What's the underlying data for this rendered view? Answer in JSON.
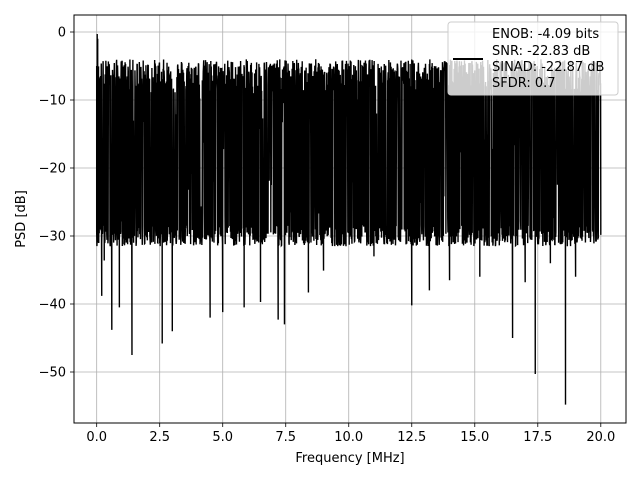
{
  "chart_data": {
    "type": "line",
    "title": "",
    "xlabel": "Frequency [MHz]",
    "ylabel": "PSD [dB]",
    "xlim": [
      -0.9,
      21.0
    ],
    "ylim": [
      -57.5,
      2.5
    ],
    "xticks": [
      0.0,
      2.5,
      5.0,
      7.5,
      10.0,
      12.5,
      15.0,
      17.5,
      20.0
    ],
    "xtick_labels": [
      "0.0",
      "2.5",
      "5.0",
      "7.5",
      "10.0",
      "12.5",
      "15.0",
      "17.5",
      "20.0"
    ],
    "yticks": [
      0,
      -10,
      -20,
      -30,
      -40,
      -50
    ],
    "ytick_labels": [
      "0",
      "−10",
      "−20",
      "−30",
      "−40",
      "−50"
    ],
    "grid": true,
    "legend": {
      "placement": "top-right",
      "lines": [
        "ENOB: -4.09 bits",
        "SNR: -22.83 dB",
        "SINAD: -22.87 dB",
        "SFDR: 0.7"
      ]
    },
    "series": [
      {
        "color": "#000000",
        "noise_floor_db": {
          "min": -28.5,
          "max": -9.0
        },
        "x": [
          0.0,
          0.02,
          0.04,
          0.06,
          0.08,
          0.1,
          0.2,
          0.3,
          0.6,
          0.9,
          1.4,
          2.6,
          3.0,
          4.5,
          5.0,
          5.85,
          6.5,
          7.2,
          7.45,
          8.4,
          9.0,
          11.0,
          12.5,
          13.2,
          14.0,
          15.2,
          16.5,
          17.0,
          17.4,
          18.0,
          18.6,
          19.0,
          19.5,
          19.9,
          20.0
        ],
        "y": [
          -5,
          -0.3,
          -1,
          -15,
          -29,
          -25,
          -38.8,
          -33.6,
          -43.8,
          -40.5,
          -47.5,
          -45.8,
          -44.0,
          -42.0,
          -41.2,
          -40.5,
          -39.7,
          -42.3,
          -43.0,
          -38.3,
          -35.1,
          -33.0,
          -40.2,
          -38.0,
          -36.5,
          -36.0,
          -45.0,
          -36.8,
          -50.3,
          -34.0,
          -54.8,
          -36.0,
          -29.5,
          -27.0,
          -26.5
        ]
      }
    ]
  }
}
